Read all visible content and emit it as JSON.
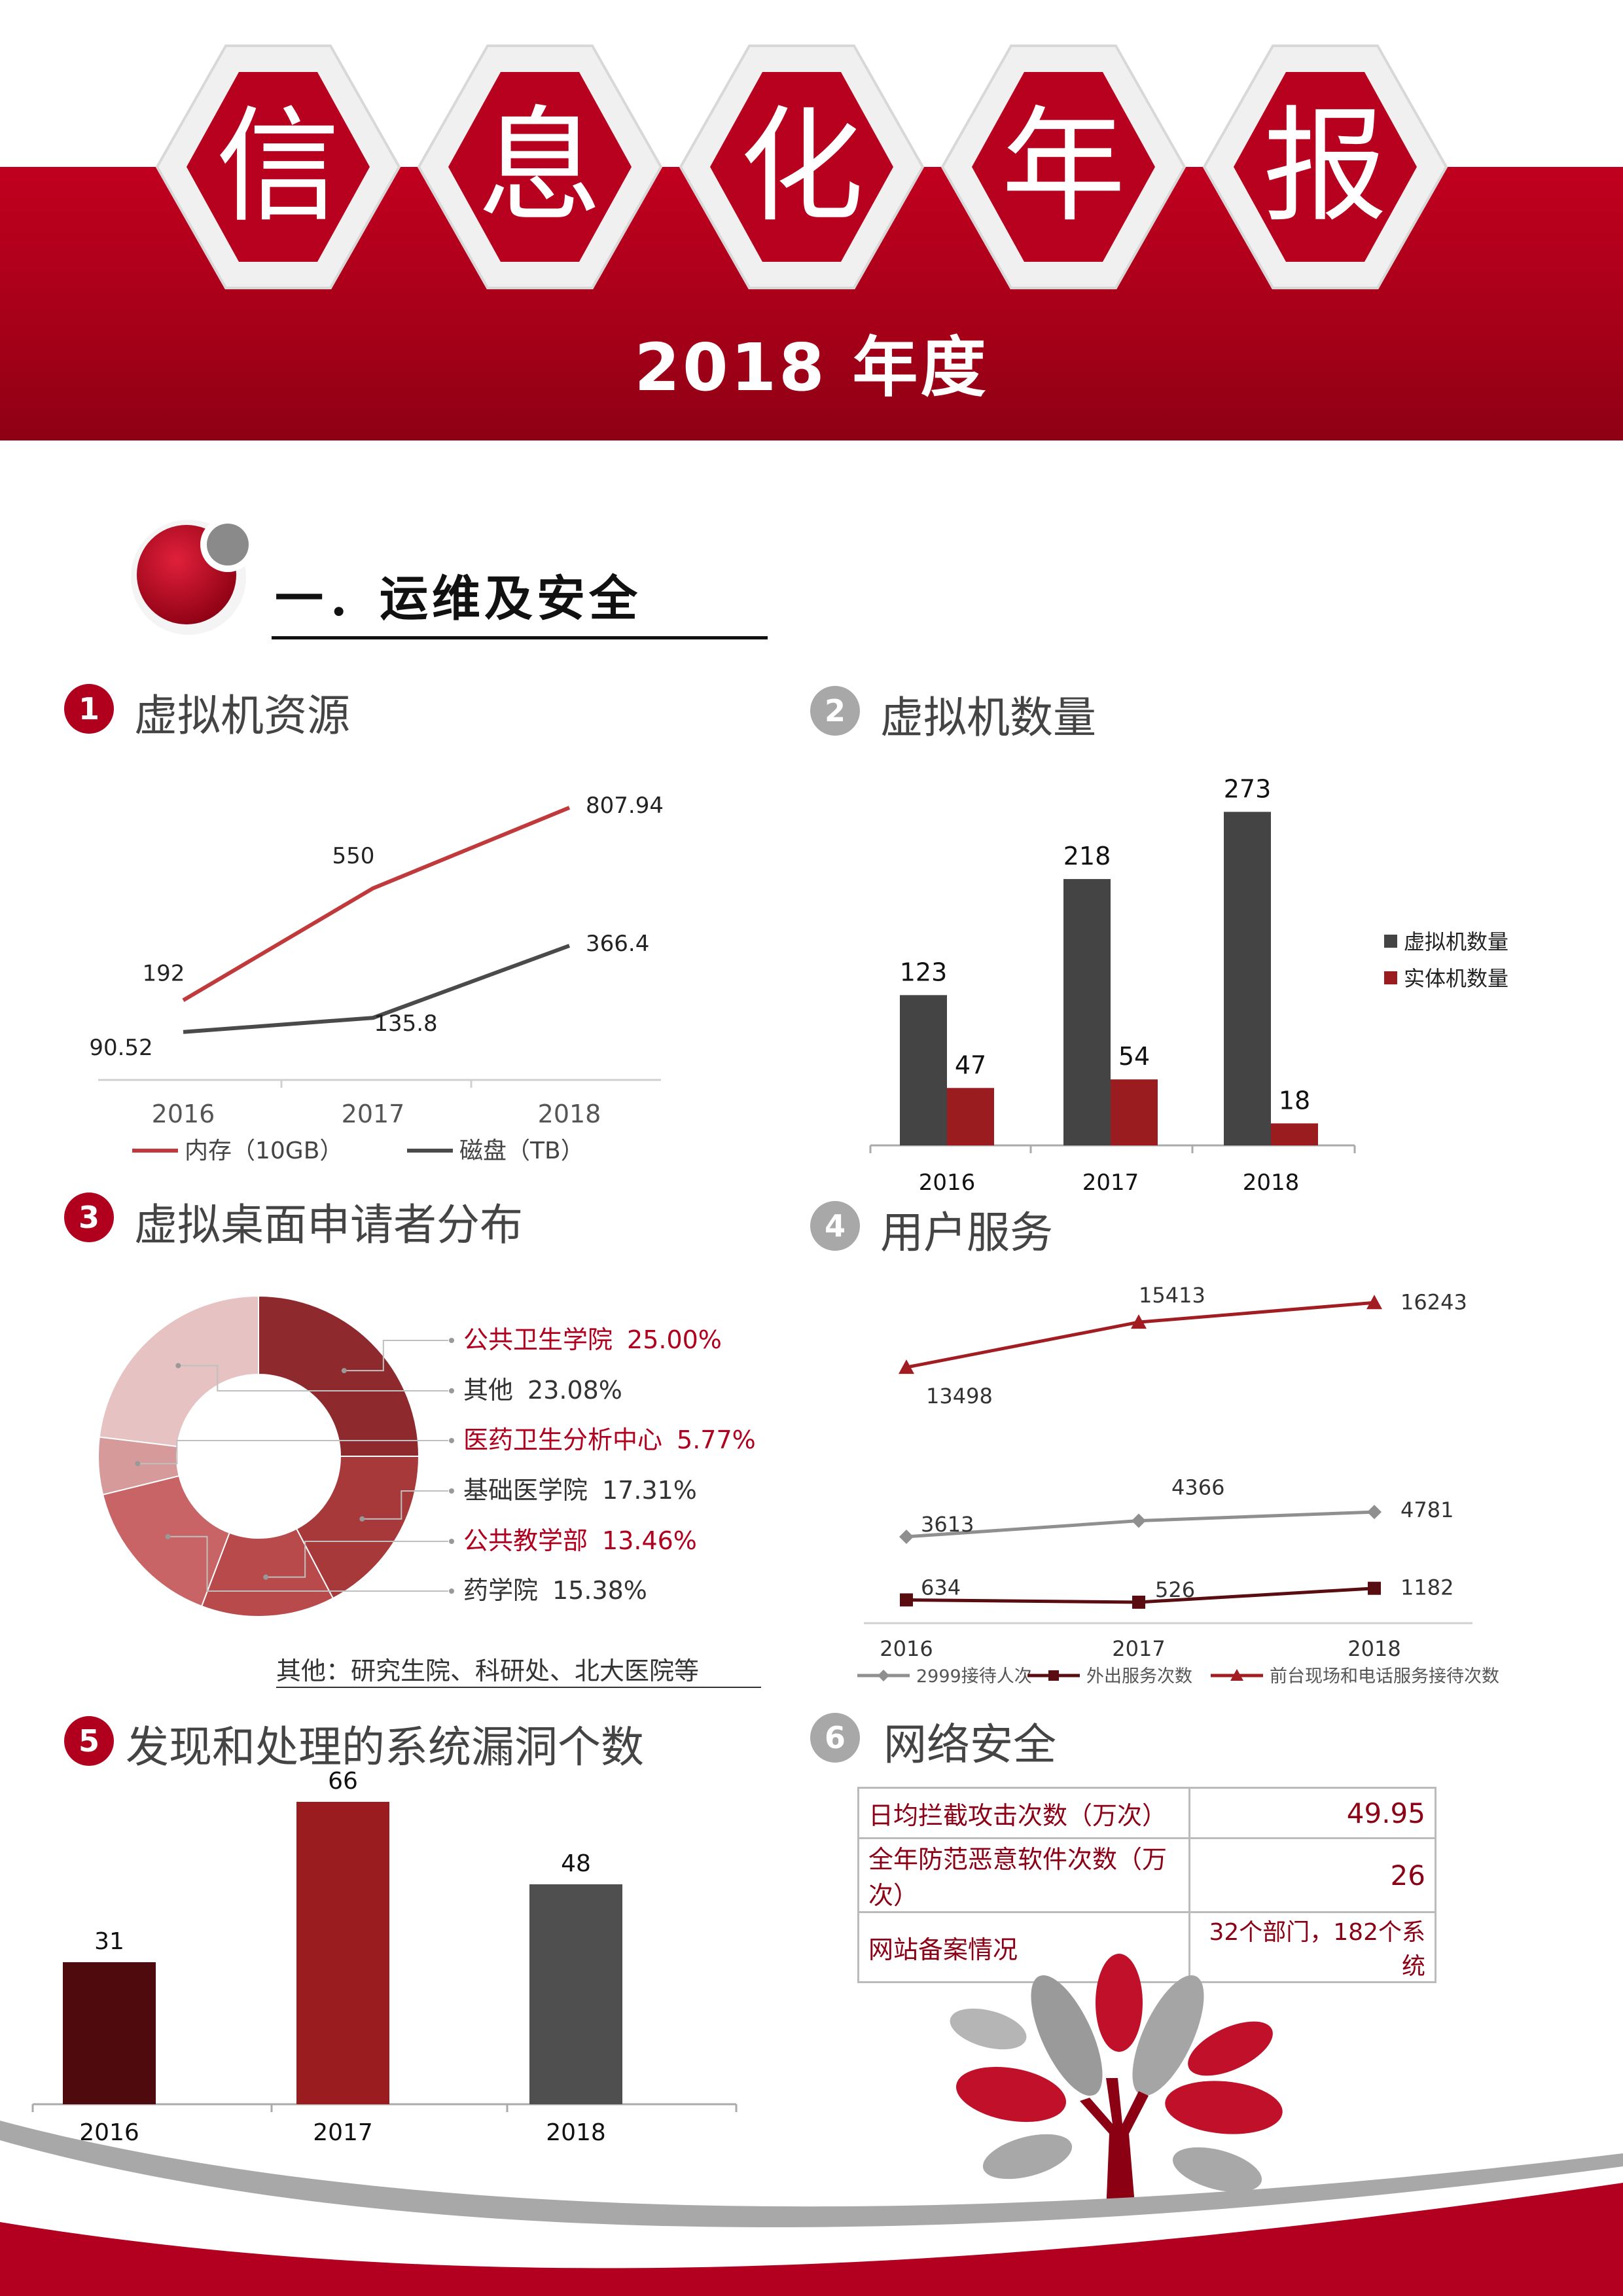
{
  "header": {
    "title_chars": [
      "信",
      "息",
      "化",
      "年",
      "报"
    ],
    "year_label": "2018 年度"
  },
  "section": {
    "title": "一．运维及安全"
  },
  "panels": [
    {
      "num": "1",
      "title": "虚拟机资源"
    },
    {
      "num": "2",
      "title": "虚拟机数量"
    },
    {
      "num": "3",
      "title": "虚拟桌面申请者分布"
    },
    {
      "num": "4",
      "title": "用户服务"
    },
    {
      "num": "5",
      "title": "发现和处理的系统漏洞个数"
    },
    {
      "num": "6",
      "title": "网络安全"
    }
  ],
  "chart_data": [
    {
      "type": "line",
      "x": [
        "2016",
        "2017",
        "2018"
      ],
      "series": [
        {
          "name": "内存（10GB）",
          "values": [
            192,
            550,
            807.94
          ],
          "color": "#c0393b"
        },
        {
          "name": "磁盘（TB）",
          "values": [
            90.52,
            135.8,
            366.4
          ],
          "color": "#4a4a4a"
        }
      ],
      "legend_position": "bottom"
    },
    {
      "type": "bar",
      "categories": [
        "2016",
        "2017",
        "2018"
      ],
      "series": [
        {
          "name": "虚拟机数量",
          "values": [
            123,
            218,
            273
          ],
          "color": "#444444"
        },
        {
          "name": "实体机数量",
          "values": [
            47,
            54,
            18
          ],
          "color": "#9b1c1f"
        }
      ],
      "legend_position": "right"
    },
    {
      "type": "pie",
      "donut": true,
      "slices": [
        {
          "label": "公共卫生学院",
          "value": 25.0,
          "display": "25.00%",
          "color": "#8e2a2d",
          "highlight": true
        },
        {
          "label": "基础医学院",
          "value": 17.31,
          "display": "17.31%",
          "color": "#a8393b",
          "highlight": false
        },
        {
          "label": "公共教学部",
          "value": 13.46,
          "display": "13.46%",
          "color": "#b84a4b",
          "highlight": true
        },
        {
          "label": "药学院",
          "value": 15.38,
          "display": "15.38%",
          "color": "#c86466",
          "highlight": false
        },
        {
          "label": "医药卫生分析中心",
          "value": 5.77,
          "display": "5.77%",
          "color": "#d69a9b",
          "highlight": true
        },
        {
          "label": "其他",
          "value": 23.08,
          "display": "23.08%",
          "color": "#e7c2c3",
          "highlight": false
        }
      ],
      "legend_order": [
        "公共卫生学院",
        "其他",
        "医药卫生分析中心",
        "基础医学院",
        "公共教学部",
        "药学院"
      ],
      "note": "其他：研究生院、科研处、北大医院等"
    },
    {
      "type": "line",
      "x": [
        "2016",
        "2017",
        "2018"
      ],
      "series": [
        {
          "name": "前台现场和电话服务接待次数",
          "values": [
            13498,
            15413,
            16243
          ],
          "color": "#a21d21",
          "marker": "triangle"
        },
        {
          "name": "2999接待人次",
          "values": [
            3613,
            4366,
            4781
          ],
          "color": "#8f8f8f",
          "marker": "diamond"
        },
        {
          "name": "外出服务次数",
          "values": [
            634,
            526,
            1182
          ],
          "color": "#5a0d10",
          "marker": "square"
        }
      ],
      "legend_order": [
        "2999接待人次",
        "外出服务次数",
        "前台现场和电话服务接待次数"
      ],
      "legend_position": "bottom"
    },
    {
      "type": "bar",
      "categories": [
        "2016",
        "2017",
        "2018"
      ],
      "values": [
        31,
        66,
        48
      ],
      "colors": [
        "#4e0a0c",
        "#9b1c1f",
        "#4f4f4f"
      ]
    },
    {
      "type": "table",
      "rows": [
        {
          "label": "日均拦截攻击次数（万次）",
          "value": "49.95"
        },
        {
          "label": "全年防范恶意软件次数（万次）",
          "value": "26"
        },
        {
          "label": "网站备案情况",
          "value": "32个部门，182个系统"
        }
      ]
    }
  ]
}
